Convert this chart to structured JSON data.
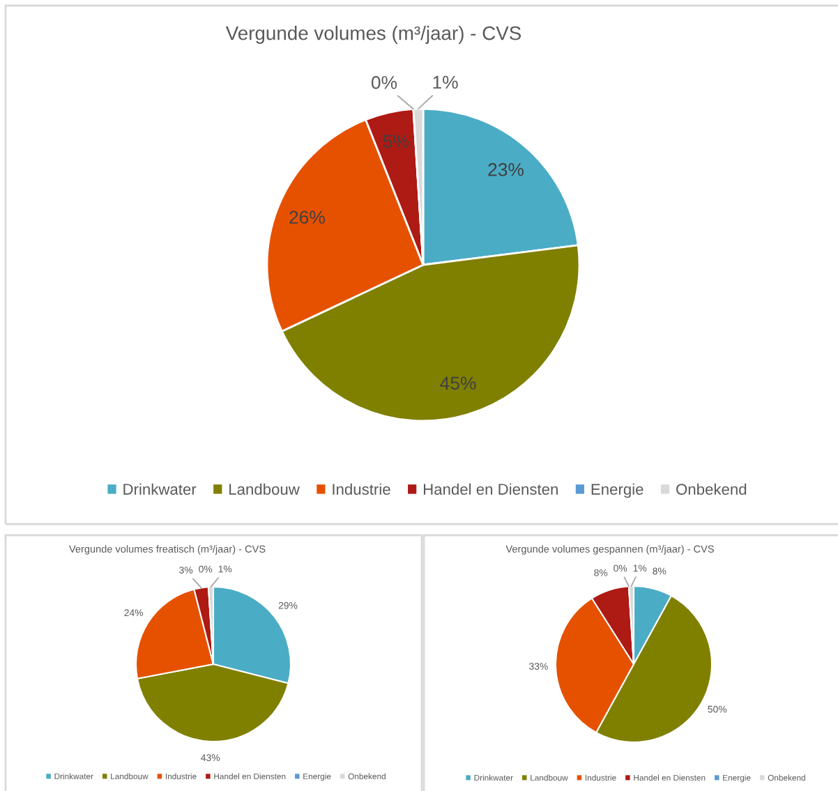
{
  "chart_data": [
    {
      "type": "pie",
      "title": "Vergunde volumes (m³/jaar) - CVS",
      "categories": [
        "Drinkwater",
        "Landbouw",
        "Industrie",
        "Handel en Diensten",
        "Energie",
        "Onbekend"
      ],
      "values": [
        23,
        45,
        26,
        5,
        0,
        1
      ],
      "value_labels": [
        "23%",
        "45%",
        "26%",
        "5%",
        "0%",
        "1%"
      ],
      "colors": [
        "#4bacc6",
        "#7f7f00",
        "#e65100",
        "#ae1a14",
        "#5b9bd5",
        "#d9d9d9"
      ],
      "legend": "bottom"
    },
    {
      "type": "pie",
      "title": "Vergunde volumes freatisch (m³/jaar) - CVS",
      "categories": [
        "Drinkwater",
        "Landbouw",
        "Industrie",
        "Handel en Diensten",
        "Energie",
        "Onbekend"
      ],
      "values": [
        29,
        43,
        24,
        3,
        0,
        1
      ],
      "value_labels": [
        "29%",
        "43%",
        "24%",
        "3%",
        "0%",
        "1%"
      ],
      "colors": [
        "#4bacc6",
        "#7f7f00",
        "#e65100",
        "#ae1a14",
        "#5b9bd5",
        "#d9d9d9"
      ],
      "legend": "bottom"
    },
    {
      "type": "pie",
      "title": "Vergunde volumes gespannen (m³/jaar) - CVS",
      "categories": [
        "Drinkwater",
        "Landbouw",
        "Industrie",
        "Handel en Diensten",
        "Energie",
        "Onbekend"
      ],
      "values": [
        8,
        50,
        33,
        8,
        0,
        1
      ],
      "value_labels": [
        "8%",
        "50%",
        "33%",
        "8%",
        "0%",
        "1%"
      ],
      "colors": [
        "#4bacc6",
        "#7f7f00",
        "#e65100",
        "#ae1a14",
        "#5b9bd5",
        "#d9d9d9"
      ],
      "legend": "bottom"
    }
  ]
}
